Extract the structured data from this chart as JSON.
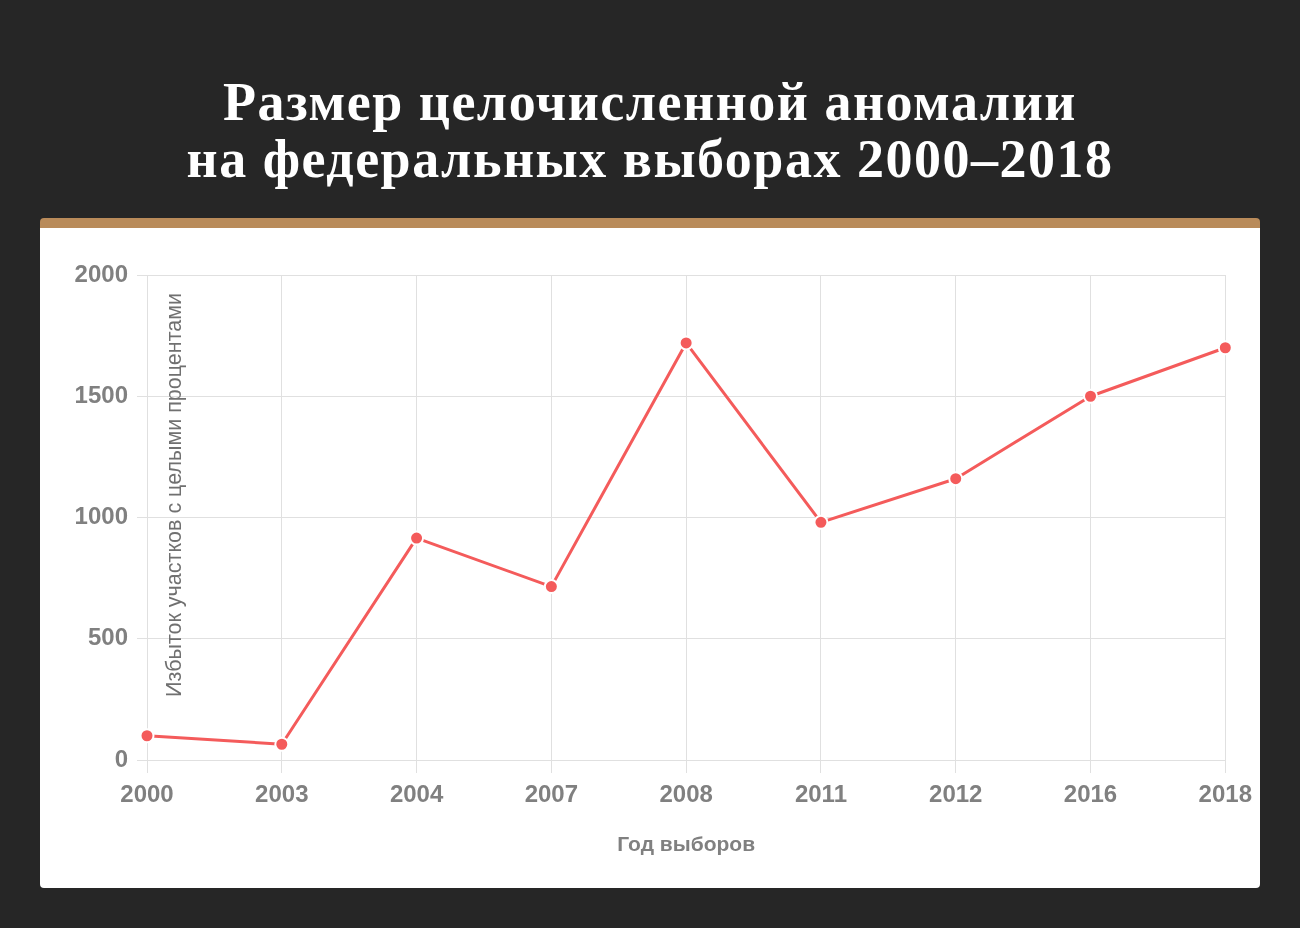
{
  "chart_data": {
    "type": "line",
    "title": "Размер целочисленной аномалии\nна федеральных выборах 2000–2018",
    "xlabel": "Год выборов",
    "ylabel": "Избыток участков с целыми процентами",
    "categories": [
      "2000",
      "2003",
      "2004",
      "2007",
      "2008",
      "2011",
      "2012",
      "2016",
      "2018"
    ],
    "values": [
      100,
      65,
      915,
      715,
      1720,
      980,
      1160,
      1500,
      1700
    ],
    "color": "#f45b5b",
    "ylim": [
      0,
      2000
    ],
    "yticks": [
      0,
      500,
      1000,
      1500,
      2000
    ],
    "grid": true,
    "marker": "circle",
    "line_style": "solid"
  }
}
